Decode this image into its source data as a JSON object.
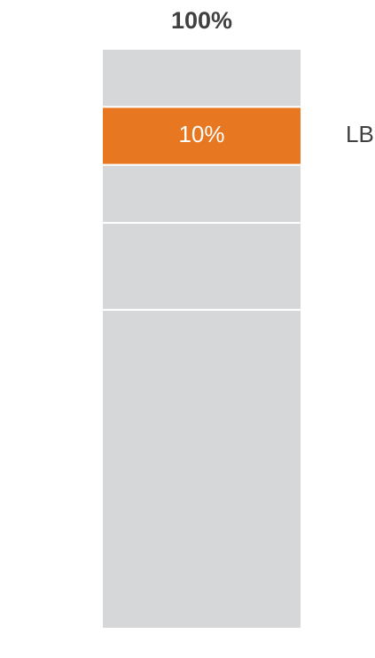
{
  "chart_data": {
    "type": "bar",
    "stacked": true,
    "categories": [
      null
    ],
    "totals": [
      100
    ],
    "total_labels": [
      "100%"
    ],
    "ylim": [
      0,
      100
    ],
    "series": [
      {
        "color": "#d6d7d9",
        "values": [
          55
        ]
      },
      {
        "color": "#d6d7d9",
        "values": [
          15
        ]
      },
      {
        "color": "#d6d7d9",
        "values": [
          10
        ]
      },
      {
        "name": "LBS",
        "color": "#e87722",
        "values": [
          10
        ],
        "value_labels": [
          "10%"
        ]
      },
      {
        "color": "#d6d7d9",
        "values": [
          10
        ]
      }
    ]
  }
}
